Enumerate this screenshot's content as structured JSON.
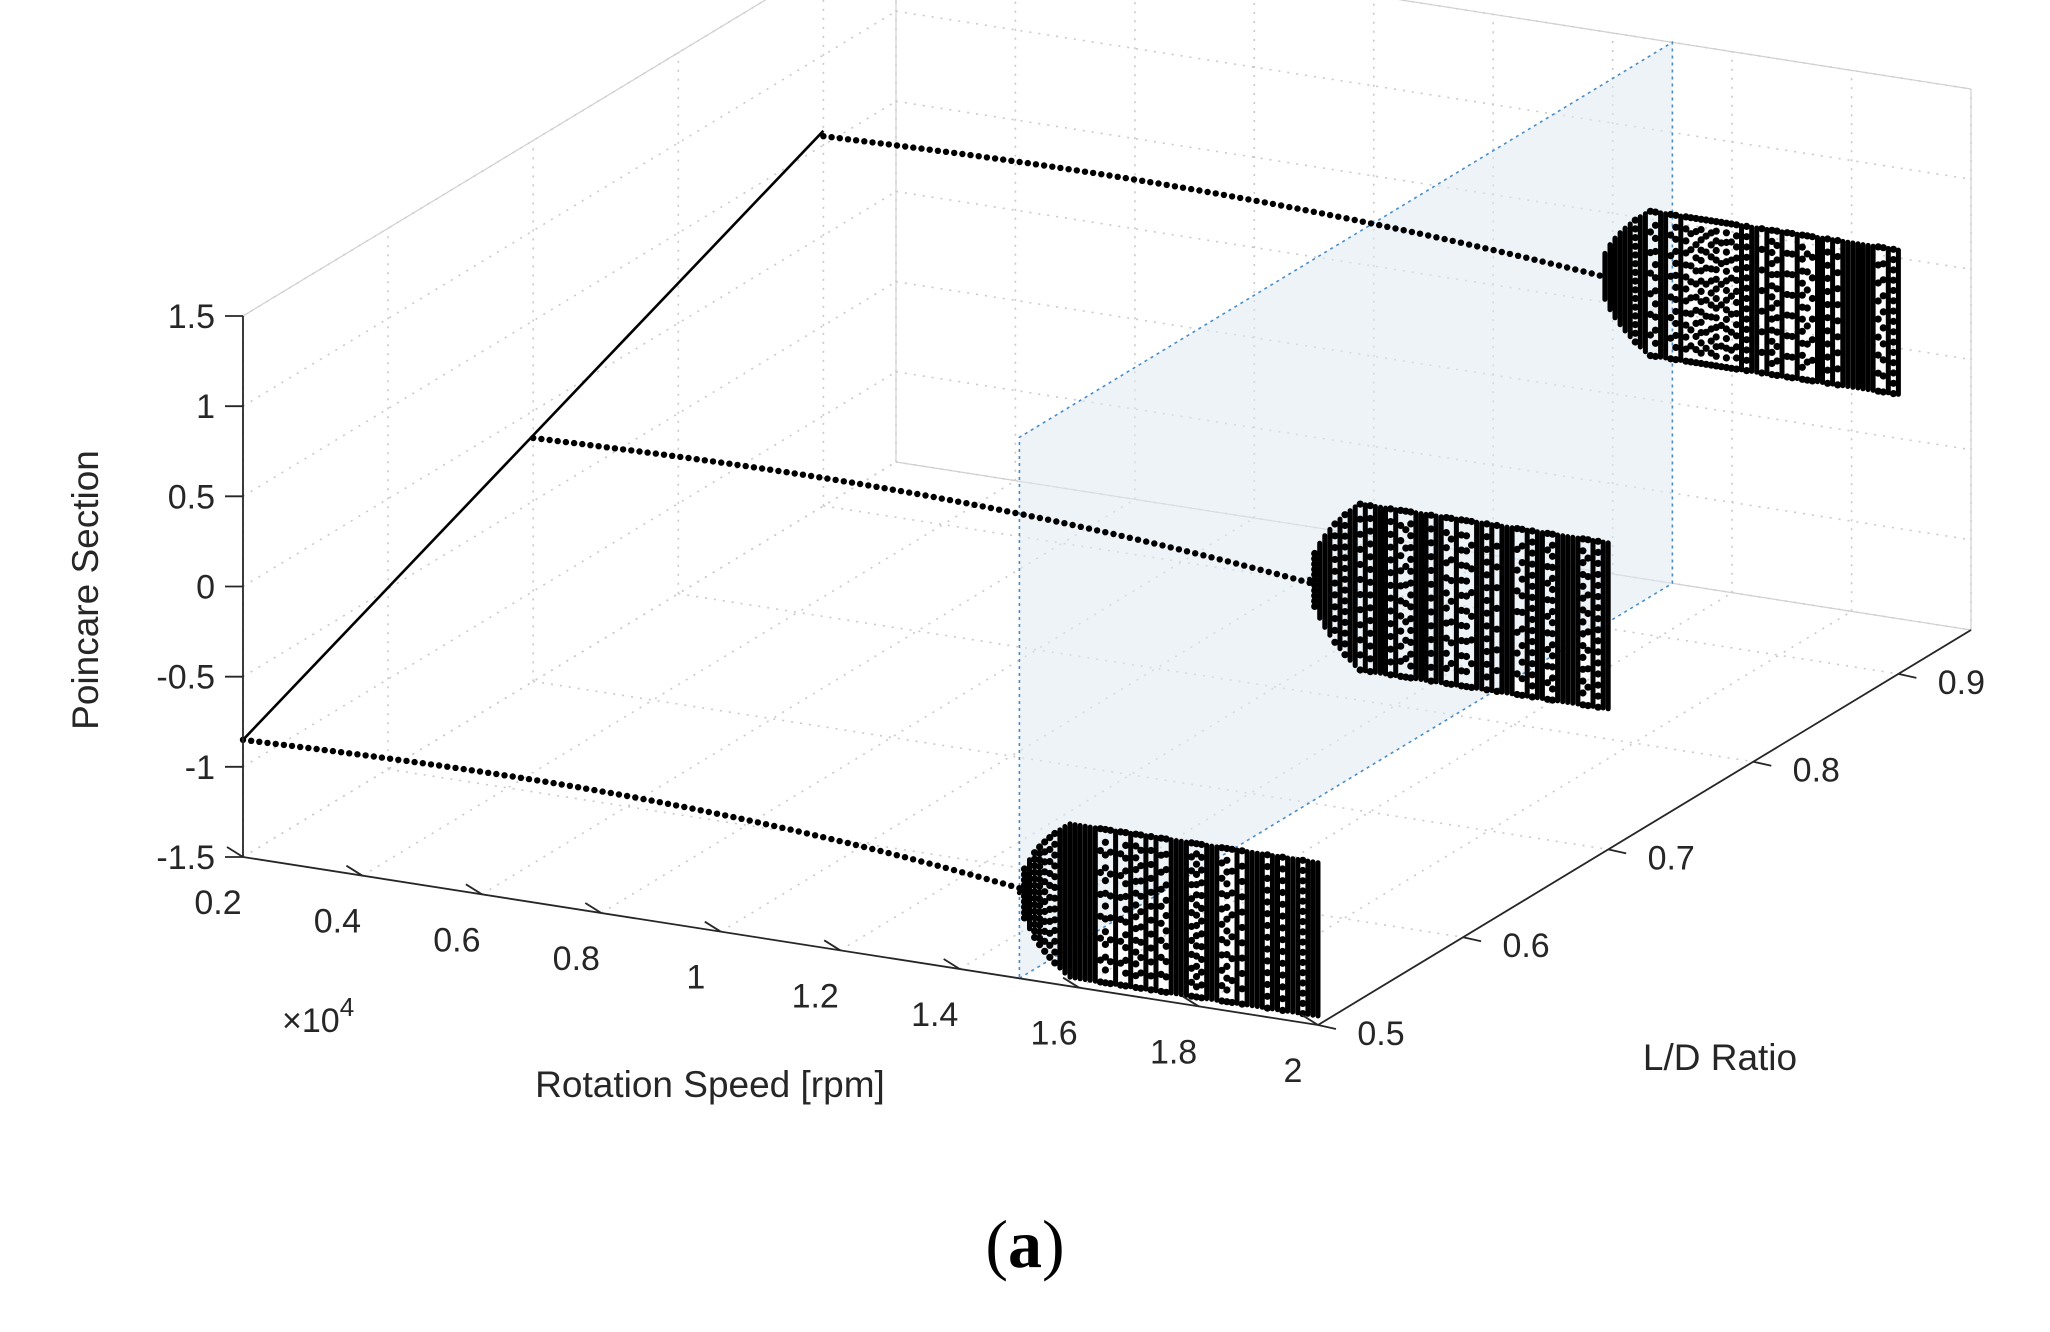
{
  "chart_data": {
    "type": "3d-scatter",
    "title": "",
    "xlabel": "Rotation Speed [rpm]",
    "xscale_label": "×10",
    "xscale_exp": "4",
    "ylabel": "L/D Ratio",
    "zlabel": "Poincare Section",
    "xlim": [
      0.2,
      2.0
    ],
    "ylim": [
      0.5,
      0.95
    ],
    "zlim": [
      -1.5,
      1.5
    ],
    "x_ticks": [
      "0.2",
      "0.4",
      "0.6",
      "0.8",
      "1",
      "1.2",
      "1.4",
      "1.6",
      "1.8",
      "2"
    ],
    "y_ticks": [
      "0.5",
      "0.6",
      "0.7",
      "0.8",
      "0.9"
    ],
    "z_ticks": [
      "-1.5",
      "-1",
      "-0.5",
      "0",
      "0.5",
      "1",
      "1.5"
    ],
    "grid": true,
    "section_plane": {
      "x": 1.5,
      "color": "#dfe9f1",
      "edge_color": "#4a8cc8"
    },
    "series": [
      {
        "name": "L/D = 0.5",
        "ld": 0.5,
        "periodic": {
          "x": [
            0.2,
            1.5
          ],
          "z_start": -0.85,
          "z_peak": -0.82,
          "z_end": -1.0
        },
        "chaotic": {
          "x_range": [
            1.5,
            2.0
          ],
          "z_range": [
            -1.45,
            -0.6
          ]
        }
      },
      {
        "name": "L/D = 0.7",
        "ld": 0.7,
        "periodic": {
          "x": [
            0.2,
            1.5
          ],
          "z_start": -0.15,
          "z_peak": -0.12,
          "z_end": -0.28
        },
        "chaotic": {
          "x_range": [
            1.5,
            2.0
          ],
          "z_range": [
            -0.72,
            0.2
          ]
        }
      },
      {
        "name": "L/D = 0.9",
        "ld": 0.9,
        "periodic": {
          "x": [
            0.2,
            1.5
          ],
          "z_start": 0.55,
          "z_peak": 0.58,
          "z_end": 0.45
        },
        "chaotic": {
          "x_range": [
            1.5,
            2.0
          ],
          "z_range": [
            0.05,
            0.85
          ]
        }
      }
    ]
  },
  "caption": {
    "open": "(",
    "letter": "a",
    "close": ")"
  }
}
